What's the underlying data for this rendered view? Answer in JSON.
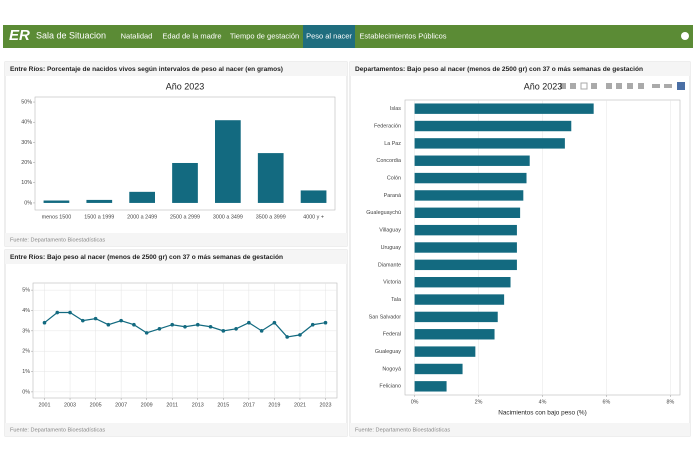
{
  "header": {
    "logo": "ER",
    "app_title": "Sala de Situacion",
    "tabs": [
      "Natalidad",
      "Edad de la madre",
      "Tiempo de gestación",
      "Peso al nacer",
      "Establecimientos Públicos"
    ],
    "active_tab": 3
  },
  "chart_data": [
    {
      "type": "bar",
      "panel_title": "Entre Ríos: Porcentaje de nacidos vivos según intervalos de peso al nacer (en gramos)",
      "title": "Año 2023",
      "source": "Fuente: Departamento Bioestadísticas",
      "categories": [
        "menos 1500",
        "1500 a 1999",
        "2000 a 2499",
        "2500 a 2999",
        "3000 a 3499",
        "3500 a 3999",
        "4000 y +"
      ],
      "values": [
        1.2,
        1.5,
        5.5,
        19.8,
        41,
        24.7,
        6.2
      ],
      "color": "#136a80",
      "ylim": [
        -3.5,
        52.5
      ],
      "yticks": [
        {
          "value": 0,
          "label": "0%"
        },
        {
          "value": 10,
          "label": "10%"
        },
        {
          "value": 20,
          "label": "20%"
        },
        {
          "value": 30,
          "label": "30%"
        },
        {
          "value": 40,
          "label": "40%"
        },
        {
          "value": 50,
          "label": "50%"
        }
      ],
      "grid": false
    },
    {
      "type": "line",
      "panel_title": "Entre Ríos: Bajo peso al nacer (menos de 2500 gr) con 37 o más semanas de gestación",
      "source": "Fuente: Departamento Bioestadísticas",
      "x": [
        2001,
        2002,
        2003,
        2004,
        2005,
        2006,
        2007,
        2008,
        2009,
        2010,
        2011,
        2012,
        2013,
        2014,
        2015,
        2016,
        2017,
        2018,
        2019,
        2020,
        2021,
        2022,
        2023
      ],
      "values": [
        3.4,
        3.9,
        3.9,
        3.5,
        3.6,
        3.3,
        3.5,
        3.3,
        2.9,
        3.1,
        3.3,
        3.2,
        3.3,
        3.2,
        3.0,
        3.1,
        3.4,
        3.0,
        3.4,
        2.7,
        2.8,
        3.3,
        3.4
      ],
      "color": "#136a80",
      "xlim": [
        2000.1,
        2023.9
      ],
      "xticks": [
        2001,
        2003,
        2005,
        2007,
        2009,
        2011,
        2013,
        2015,
        2017,
        2019,
        2021,
        2023
      ],
      "ylim": [
        -0.3,
        5.35
      ],
      "yticks": [
        {
          "value": 0,
          "label": "0%"
        },
        {
          "value": 1,
          "label": "1%"
        },
        {
          "value": 2,
          "label": "2%"
        },
        {
          "value": 3,
          "label": "3%"
        },
        {
          "value": 4,
          "label": "4%"
        },
        {
          "value": 5,
          "label": "5%"
        }
      ],
      "grid": true
    },
    {
      "type": "barh",
      "panel_title": "Departamentos: Bajo peso al nacer (menos de 2500 gr) con 37 o más semanas de gestación",
      "title": "Año 2023",
      "source": "Fuente: Departamento Bioestadísticas",
      "xlabel": "Nacimientos con bajo peso (%)",
      "categories": [
        "Islas",
        "Federación",
        "La Paz",
        "Concordia",
        "Colón",
        "Paraná",
        "Gualeguaychú",
        "Villaguay",
        "Uruguay",
        "Diamante",
        "Victoria",
        "Tala",
        "San Salvador",
        "Federal",
        "Gualeguay",
        "Nogoyá",
        "Feliciano"
      ],
      "values": [
        5.6,
        4.9,
        4.7,
        3.6,
        3.5,
        3.4,
        3.3,
        3.2,
        3.2,
        3.2,
        3.0,
        2.8,
        2.6,
        2.5,
        1.9,
        1.5,
        1.0
      ],
      "color": "#136a80",
      "xlim": [
        -0.3,
        8.3
      ],
      "xticks": [
        {
          "value": 0,
          "label": "0%"
        },
        {
          "value": 2,
          "label": "2%"
        },
        {
          "value": 4,
          "label": "4%"
        },
        {
          "value": 6,
          "label": "6%"
        },
        {
          "value": 8,
          "label": "8%"
        }
      ],
      "grid": true
    }
  ]
}
